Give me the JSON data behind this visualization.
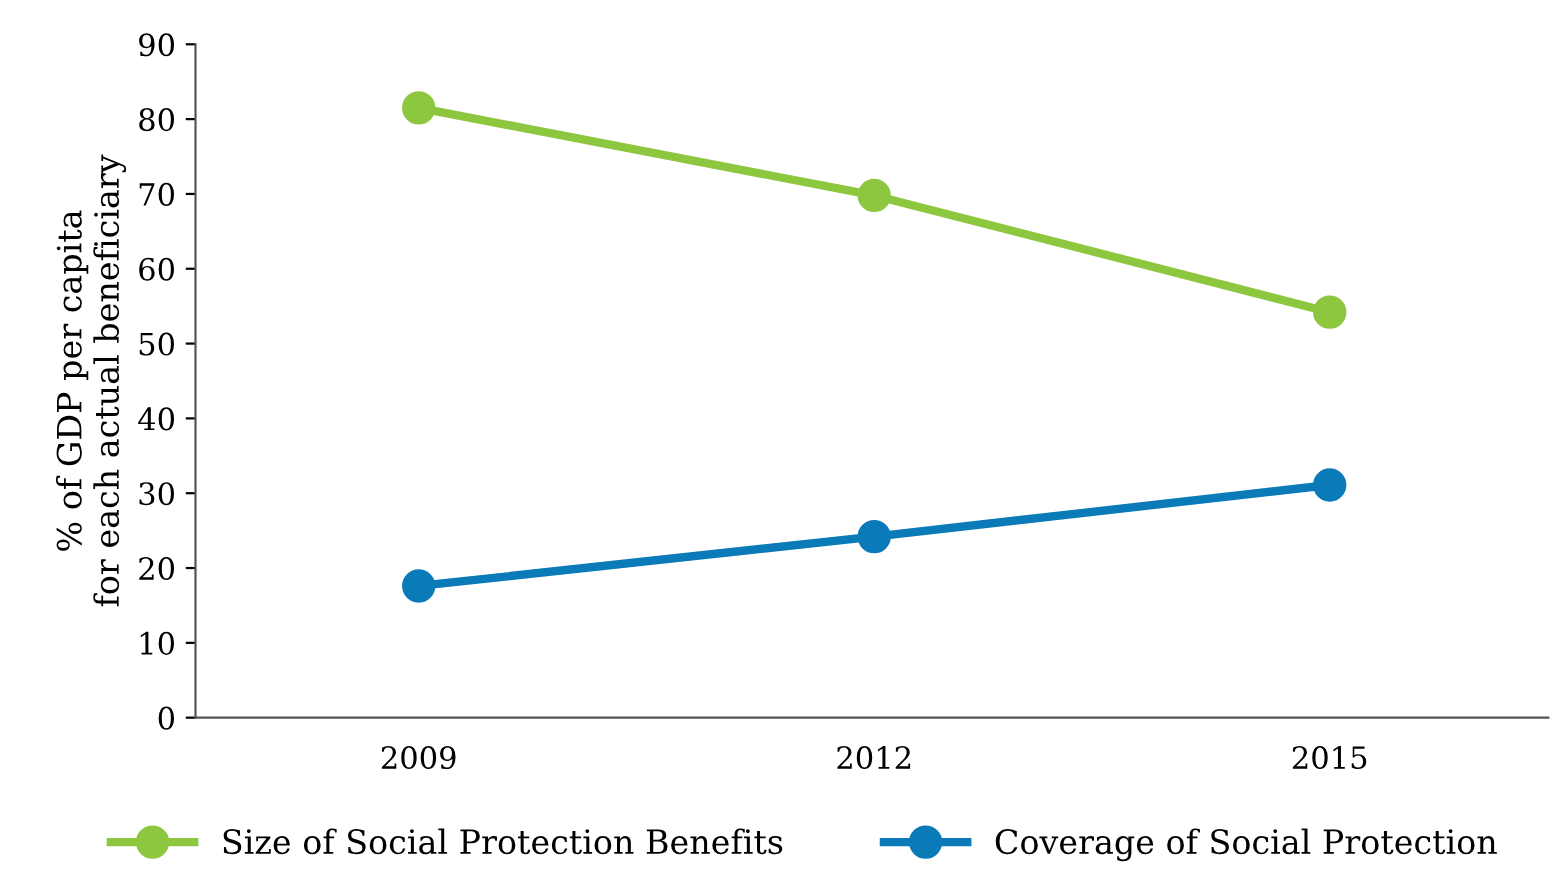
{
  "chart_data": {
    "type": "line",
    "ylabel": "% of GDP per capita\nfor each actual beneficiary",
    "categories": [
      "2009",
      "2012",
      "2015"
    ],
    "series": [
      {
        "name": "Size of Social Protection Benefits",
        "color": "#8dc63f",
        "values": [
          81.5,
          69.8,
          54.2
        ]
      },
      {
        "name": "Coverage of Social Protection",
        "color": "#0a7ab8",
        "values": [
          17.6,
          24.2,
          31.1
        ]
      }
    ],
    "ylim": [
      0,
      90
    ],
    "yticks": [
      0,
      10,
      20,
      30,
      40,
      50,
      60,
      70,
      80,
      90
    ],
    "grid": false,
    "legend": "bottom",
    "marker": "circle",
    "line_style": "solid"
  }
}
